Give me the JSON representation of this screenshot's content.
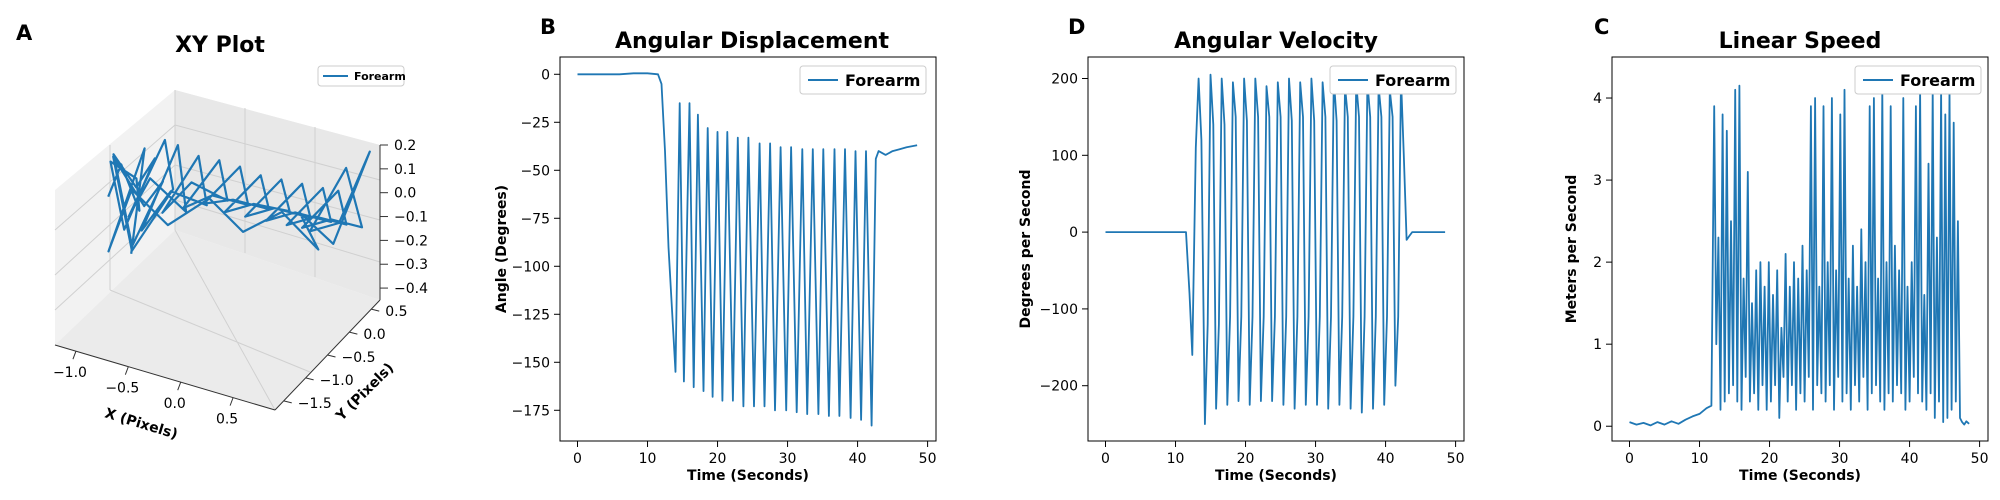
{
  "colors": {
    "line": "#1f77b4",
    "axis": "#000000",
    "pane": "#ececec",
    "grid": "#d4d4d4"
  },
  "panels": {
    "xy": {
      "letter": "A"
    },
    "angular_displacement": {
      "letter": "B"
    },
    "angular_velocity": {
      "letter": "D"
    },
    "linear_speed": {
      "letter": "C"
    }
  },
  "chart_data": [
    {
      "id": "xy",
      "type": "line",
      "projection": "3d",
      "title": "XY Plot",
      "xlabel": "X (Pixels)",
      "ylabel": "Y (Pixels)",
      "zlabel": "",
      "legend": [
        "Forearm"
      ],
      "legend_loc": "upper right",
      "xlim": [
        -1.2,
        0.9
      ],
      "ylim": [
        -1.7,
        0.7
      ],
      "zlim": [
        -0.45,
        0.2
      ],
      "xticks": [
        "−1.0",
        "−0.5",
        "0.0",
        "0.5"
      ],
      "xtick_values": [
        -1.0,
        -0.5,
        0.0,
        0.5
      ],
      "yticks": [
        "−1.5",
        "−1.0",
        "−0.5",
        "0.0",
        "0.5"
      ],
      "ytick_values": [
        -1.5,
        -1.0,
        -0.5,
        0.0,
        0.5
      ],
      "zticks": [
        "0.2",
        "0.1",
        "0.0",
        "−0.1",
        "−0.2",
        "−0.3",
        "−0.4"
      ],
      "ztick_values": [
        0.2,
        0.1,
        0.0,
        -0.1,
        -0.2,
        -0.3,
        -0.4
      ],
      "series": [
        {
          "name": "Forearm",
          "points": [
            [
              -1.05,
              -0.95,
              -0.1
            ],
            [
              -0.95,
              -0.9,
              0.05
            ],
            [
              -0.8,
              -0.85,
              -0.15
            ],
            [
              -0.9,
              -0.7,
              -0.05
            ],
            [
              -1.1,
              -0.8,
              0.02
            ],
            [
              -0.85,
              -1.05,
              -0.2
            ],
            [
              -0.7,
              -0.75,
              0.08
            ],
            [
              -0.95,
              -0.6,
              -0.12
            ],
            [
              -1.0,
              -0.95,
              0.1
            ],
            [
              -0.75,
              -1.1,
              -0.25
            ],
            [
              -0.6,
              -0.8,
              0.0
            ],
            [
              -0.85,
              -0.65,
              -0.18
            ],
            [
              -1.05,
              -0.85,
              0.06
            ],
            [
              -0.8,
              -1.0,
              -0.3
            ],
            [
              -0.55,
              -0.7,
              -0.05
            ],
            [
              -0.7,
              -0.55,
              0.12
            ],
            [
              -0.95,
              -0.75,
              -0.22
            ],
            [
              -0.65,
              -0.95,
              0.04
            ],
            [
              -0.45,
              -0.65,
              -0.15
            ],
            [
              -0.6,
              -0.5,
              0.1
            ],
            [
              -0.85,
              -0.7,
              -0.28
            ],
            [
              -0.5,
              -0.85,
              -0.02
            ],
            [
              -0.3,
              -0.55,
              -0.12
            ],
            [
              -0.45,
              -0.4,
              0.05
            ],
            [
              -0.7,
              -0.6,
              -0.2
            ],
            [
              -0.35,
              -0.75,
              0.02
            ],
            [
              -0.15,
              -0.45,
              -0.1
            ],
            [
              -0.3,
              -0.3,
              0.03
            ],
            [
              -0.55,
              -0.5,
              -0.18
            ],
            [
              -0.2,
              -0.65,
              -0.04
            ],
            [
              0.0,
              -0.35,
              -0.12
            ],
            [
              -0.15,
              -0.2,
              0.0
            ],
            [
              -0.4,
              -0.4,
              -0.16
            ],
            [
              -0.05,
              -0.55,
              -0.06
            ],
            [
              0.15,
              -0.25,
              -0.14
            ],
            [
              0.0,
              -0.1,
              -0.04
            ],
            [
              -0.25,
              -0.3,
              -0.2
            ],
            [
              0.1,
              -0.45,
              -0.08
            ],
            [
              0.3,
              -0.15,
              -0.15
            ],
            [
              0.15,
              0.0,
              -0.06
            ],
            [
              -0.1,
              -0.2,
              -0.22
            ],
            [
              0.25,
              -0.35,
              -0.1
            ],
            [
              0.45,
              -0.05,
              -0.18
            ],
            [
              0.3,
              0.1,
              -0.08
            ],
            [
              0.05,
              -0.1,
              -0.24
            ],
            [
              0.4,
              -0.25,
              -0.12
            ],
            [
              0.6,
              0.05,
              -0.2
            ],
            [
              0.45,
              0.2,
              -0.1
            ],
            [
              0.2,
              0.0,
              -0.26
            ],
            [
              0.55,
              -0.15,
              -0.14
            ],
            [
              0.7,
              0.15,
              -0.22
            ],
            [
              0.55,
              0.3,
              -0.12
            ],
            [
              0.3,
              0.1,
              -0.28
            ],
            [
              0.65,
              -0.05,
              -0.16
            ],
            [
              0.8,
              0.25,
              -0.24
            ],
            [
              0.6,
              0.35,
              -0.02
            ],
            [
              0.35,
              0.15,
              -0.3
            ],
            [
              0.7,
              0.0,
              -0.18
            ],
            [
              0.85,
              0.3,
              0.1
            ],
            [
              0.55,
              0.2,
              -0.34
            ],
            [
              0.3,
              0.05,
              -0.2
            ],
            [
              0.55,
              -0.1,
              -0.3
            ],
            [
              0.25,
              -0.2,
              -0.15
            ],
            [
              -0.05,
              -0.35,
              -0.25
            ],
            [
              -0.3,
              -0.5,
              -0.1
            ],
            [
              -0.6,
              -0.7,
              -0.22
            ],
            [
              -0.85,
              -0.9,
              -0.05
            ],
            [
              -1.0,
              -1.05,
              -0.32
            ],
            [
              -0.75,
              -0.85,
              0.14
            ],
            [
              -0.95,
              -0.7,
              -0.4
            ]
          ]
        }
      ]
    },
    {
      "id": "angular_displacement",
      "type": "line",
      "title": "Angular Displacement",
      "xlabel": "Time (Seconds)",
      "ylabel": "Angle (Degrees)",
      "legend": [
        "Forearm"
      ],
      "legend_loc": "upper right",
      "xlim": [
        -2.5,
        51.2
      ],
      "ylim": [
        -191,
        9
      ],
      "xticks": [
        0,
        10,
        20,
        30,
        40,
        50
      ],
      "yticks": [
        0,
        -25,
        -50,
        -75,
        -100,
        -125,
        -150,
        -175
      ],
      "ytick_labels": [
        "0",
        "−25",
        "−50",
        "−75",
        "−100",
        "−125",
        "−150",
        "−175"
      ],
      "series": [
        {
          "name": "Forearm",
          "x": [
            0,
            2,
            4,
            6,
            8,
            10,
            11.5,
            12,
            12.5,
            13,
            14,
            14.6,
            15.2,
            16,
            16.6,
            17.2,
            18,
            18.6,
            19.3,
            20,
            20.7,
            21.4,
            22.2,
            22.9,
            23.7,
            24.4,
            25.2,
            26,
            26.7,
            27.5,
            28.2,
            29,
            29.8,
            30.5,
            31.3,
            32.1,
            32.8,
            33.6,
            34.4,
            35.1,
            35.9,
            36.7,
            37.4,
            38.2,
            39,
            39.7,
            40.5,
            41.2,
            42,
            42.6,
            43,
            44,
            45,
            46,
            47,
            48.5
          ],
          "y": [
            0,
            0,
            0,
            0,
            0.5,
            0.5,
            0,
            -5,
            -40,
            -90,
            -155,
            -15,
            -160,
            -15,
            -163,
            -21,
            -165,
            -28,
            -168,
            -30,
            -170,
            -30,
            -170,
            -33,
            -173,
            -33,
            -173,
            -36,
            -173,
            -36,
            -175,
            -38,
            -175,
            -38,
            -176,
            -39,
            -177,
            -39,
            -177,
            -39,
            -178,
            -39,
            -178,
            -39,
            -179,
            -40,
            -180,
            -40,
            -183,
            -44,
            -40,
            -42,
            -40,
            -39,
            -38,
            -37
          ]
        }
      ]
    },
    {
      "id": "angular_velocity",
      "type": "line",
      "title": "Angular Velocity",
      "xlabel": "Time (Seconds)",
      "ylabel": "Degrees per Second",
      "legend": [
        "Forearm"
      ],
      "legend_loc": "upper right",
      "xlim": [
        -2.5,
        51.2
      ],
      "ylim": [
        -272,
        228
      ],
      "xticks": [
        0,
        10,
        20,
        30,
        40,
        50
      ],
      "yticks": [
        200,
        100,
        0,
        -100,
        -200
      ],
      "ytick_labels": [
        "200",
        "100",
        "0",
        "−100",
        "−200"
      ],
      "series": [
        {
          "name": "Forearm",
          "x": [
            0,
            2,
            4,
            6,
            8,
            10,
            11.5,
            12,
            12.4,
            12.9,
            13.3,
            13.7,
            14.2,
            14.6,
            15,
            15.4,
            15.8,
            16.2,
            16.6,
            17,
            17.4,
            17.8,
            18.2,
            18.6,
            19,
            19.4,
            19.8,
            20.2,
            20.6,
            21,
            21.4,
            21.8,
            22.2,
            22.6,
            23,
            23.4,
            23.8,
            24.2,
            24.6,
            25,
            25.4,
            25.8,
            26.2,
            26.6,
            27,
            27.4,
            27.8,
            28.2,
            28.6,
            29,
            29.4,
            29.8,
            30.2,
            30.6,
            31,
            31.4,
            31.8,
            32.2,
            32.6,
            33,
            33.4,
            33.8,
            34.2,
            34.6,
            35,
            35.4,
            35.8,
            36.2,
            36.6,
            37,
            37.4,
            37.8,
            38.2,
            38.6,
            39,
            39.4,
            39.8,
            40.2,
            40.6,
            41,
            41.4,
            41.8,
            42.2,
            42.6,
            43,
            43.4,
            43.8,
            45,
            46,
            47,
            48.5
          ],
          "y": [
            0,
            0,
            0,
            0,
            0,
            0,
            0,
            -80,
            -160,
            110,
            200,
            120,
            -250,
            -120,
            205,
            140,
            -230,
            -120,
            200,
            140,
            -225,
            -110,
            195,
            150,
            -220,
            -110,
            200,
            145,
            -225,
            -110,
            200,
            150,
            -220,
            -110,
            190,
            150,
            -220,
            -110,
            195,
            150,
            -225,
            -110,
            200,
            145,
            -230,
            -110,
            195,
            150,
            -225,
            -110,
            200,
            145,
            -225,
            -110,
            195,
            150,
            -230,
            -110,
            200,
            145,
            -225,
            -110,
            190,
            150,
            -230,
            -110,
            195,
            150,
            -235,
            -110,
            195,
            150,
            -230,
            -110,
            190,
            150,
            -225,
            -110,
            185,
            150,
            -200,
            -110,
            200,
            100,
            -10,
            -5,
            0,
            0,
            0,
            0,
            0
          ]
        }
      ]
    },
    {
      "id": "linear_speed",
      "type": "line",
      "title": "Linear Speed",
      "xlabel": "Time (Seconds)",
      "ylabel": "Meters per Second",
      "legend": [
        "Forearm"
      ],
      "legend_loc": "upper right",
      "xlim": [
        -2.5,
        51.2
      ],
      "ylim": [
        -0.18,
        4.5
      ],
      "xticks": [
        0,
        10,
        20,
        30,
        40,
        50
      ],
      "yticks": [
        0,
        1,
        2,
        3,
        4
      ],
      "series": [
        {
          "name": "Forearm",
          "x": [
            0,
            1,
            2,
            3,
            4,
            5,
            6,
            7,
            8,
            9,
            10,
            11,
            11.7,
            12.1,
            12.4,
            12.7,
            13,
            13.3,
            13.6,
            13.9,
            14.2,
            14.5,
            14.8,
            15.1,
            15.4,
            15.7,
            16,
            16.3,
            16.6,
            16.9,
            17.2,
            17.5,
            17.8,
            18.1,
            18.4,
            18.7,
            19,
            19.3,
            19.6,
            19.9,
            20.2,
            20.5,
            20.8,
            21.1,
            21.4,
            21.7,
            22,
            22.3,
            22.6,
            22.9,
            23.2,
            23.5,
            23.8,
            24.1,
            24.4,
            24.7,
            25,
            25.3,
            25.6,
            25.9,
            26.2,
            26.5,
            26.8,
            27.1,
            27.4,
            27.7,
            28,
            28.3,
            28.6,
            28.9,
            29.2,
            29.5,
            29.8,
            30.1,
            30.4,
            30.7,
            31,
            31.3,
            31.6,
            31.9,
            32.2,
            32.5,
            32.8,
            33.1,
            33.4,
            33.7,
            34,
            34.3,
            34.6,
            34.9,
            35.2,
            35.5,
            35.8,
            36.1,
            36.4,
            36.7,
            37,
            37.3,
            37.6,
            37.9,
            38.2,
            38.5,
            38.8,
            39.1,
            39.4,
            39.7,
            40,
            40.3,
            40.6,
            40.9,
            41.2,
            41.5,
            41.8,
            42.1,
            42.4,
            42.7,
            43,
            43.3,
            43.6,
            43.9,
            44.2,
            44.5,
            44.8,
            45.1,
            45.4,
            45.7,
            46,
            46.3,
            46.6,
            46.9,
            47.2,
            47.5,
            47.8,
            48.1,
            48.5
          ],
          "y": [
            0.05,
            0.02,
            0.04,
            0.01,
            0.05,
            0.02,
            0.06,
            0.03,
            0.08,
            0.12,
            0.15,
            0.22,
            0.25,
            3.9,
            1.0,
            2.3,
            0.2,
            3.8,
            0.3,
            3.6,
            0.4,
            2.5,
            0.5,
            4.1,
            0.3,
            4.15,
            0.2,
            1.8,
            0.6,
            3.1,
            0.3,
            1.5,
            0.4,
            1.9,
            0.2,
            2.0,
            0.5,
            1.7,
            0.2,
            2.0,
            0.3,
            1.6,
            0.5,
            1.9,
            0.1,
            1.2,
            0.6,
            2.1,
            0.3,
            1.7,
            0.5,
            2.0,
            0.2,
            1.8,
            0.4,
            2.2,
            0.3,
            1.9,
            0.6,
            3.9,
            0.2,
            4.0,
            0.5,
            1.7,
            0.4,
            3.9,
            0.3,
            2.0,
            0.5,
            4.0,
            0.2,
            1.9,
            0.6,
            3.8,
            0.3,
            4.1,
            0.4,
            1.8,
            0.2,
            2.2,
            0.5,
            1.7,
            0.3,
            2.4,
            0.6,
            2.0,
            0.2,
            3.9,
            0.4,
            4.0,
            0.5,
            1.8,
            0.3,
            4.1,
            0.2,
            2.0,
            0.4,
            3.9,
            0.3,
            2.2,
            0.5,
            1.9,
            0.4,
            4.0,
            0.2,
            1.7,
            0.3,
            2.0,
            0.6,
            3.9,
            0.4,
            4.1,
            0.3,
            1.6,
            0.2,
            3.2,
            0.4,
            4.1,
            0.1,
            2.3,
            0.3,
            4.1,
            0.05,
            3.8,
            0.1,
            4.1,
            0.2,
            3.7,
            0.3,
            2.5,
            0.1,
            0.05,
            0.02,
            0.06,
            0.03
          ]
        }
      ]
    }
  ]
}
